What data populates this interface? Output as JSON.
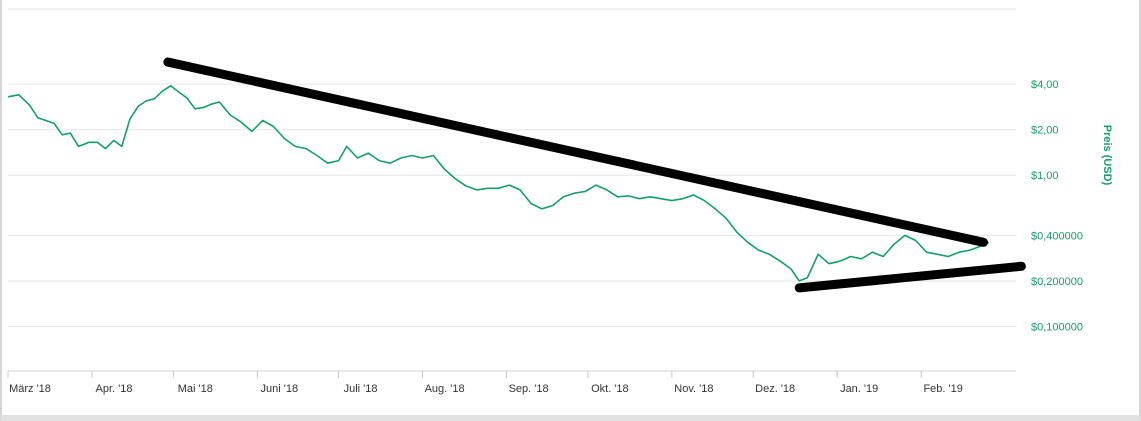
{
  "chart_data": {
    "type": "line",
    "title": "",
    "xlabel": "",
    "ylabel": "Preis (USD)",
    "y_scale": "log",
    "ylim": [
      0.05,
      12
    ],
    "grid": true,
    "legend": "none",
    "colors": {
      "line": "#13a06a",
      "trendline": "#000000",
      "grid": "#e6e6e6",
      "ytick": "#13a06a"
    },
    "x_ticks": [
      "März '18",
      "Apr. '18",
      "Mai '18",
      "Juni '18",
      "Juli '18",
      "Aug. '18",
      "Sep. '18",
      "Okt. '18",
      "Nov. '18",
      "Dez. '18",
      "Jan. '19",
      "Feb. '19"
    ],
    "y_ticks": [
      {
        "value": 4.0,
        "label": "$4,00"
      },
      {
        "value": 2.0,
        "label": "$2,00"
      },
      {
        "value": 1.0,
        "label": "$1,00"
      },
      {
        "value": 0.4,
        "label": "$0,400000"
      },
      {
        "value": 0.2,
        "label": "$0,200000"
      },
      {
        "value": 0.1,
        "label": "$0,100000"
      }
    ],
    "series": [
      {
        "x": [
          "2018-03-01",
          "2018-03-05",
          "2018-03-09",
          "2018-03-12",
          "2018-03-15",
          "2018-03-18",
          "2018-03-21",
          "2018-03-24",
          "2018-03-27",
          "2018-03-31",
          "2018-04-03",
          "2018-04-06",
          "2018-04-09",
          "2018-04-12",
          "2018-04-15",
          "2018-04-18",
          "2018-04-21",
          "2018-04-24",
          "2018-04-27",
          "2018-04-30",
          "2018-05-03",
          "2018-05-06",
          "2018-05-09",
          "2018-05-12",
          "2018-05-15",
          "2018-05-18",
          "2018-05-22",
          "2018-05-26",
          "2018-05-30",
          "2018-06-03",
          "2018-06-07",
          "2018-06-11",
          "2018-06-15",
          "2018-06-19",
          "2018-06-23",
          "2018-06-27",
          "2018-07-01",
          "2018-07-04",
          "2018-07-08",
          "2018-07-12",
          "2018-07-16",
          "2018-07-20",
          "2018-07-24",
          "2018-07-28",
          "2018-08-01",
          "2018-08-05",
          "2018-08-09",
          "2018-08-13",
          "2018-08-17",
          "2018-08-21",
          "2018-08-25",
          "2018-08-29",
          "2018-09-02",
          "2018-09-06",
          "2018-09-10",
          "2018-09-14",
          "2018-09-18",
          "2018-09-22",
          "2018-09-26",
          "2018-09-30",
          "2018-10-04",
          "2018-10-08",
          "2018-10-12",
          "2018-10-16",
          "2018-10-20",
          "2018-10-24",
          "2018-10-28",
          "2018-11-01",
          "2018-11-05",
          "2018-11-09",
          "2018-11-13",
          "2018-11-17",
          "2018-11-21",
          "2018-11-25",
          "2018-11-29",
          "2018-12-03",
          "2018-12-07",
          "2018-12-11",
          "2018-12-15",
          "2018-12-18",
          "2018-12-21",
          "2018-12-25",
          "2018-12-29",
          "2019-01-02",
          "2019-01-06",
          "2019-01-10",
          "2019-01-14",
          "2019-01-18",
          "2019-01-22",
          "2019-01-26",
          "2019-01-30",
          "2019-02-03",
          "2019-02-07",
          "2019-02-11",
          "2019-02-15",
          "2019-02-19",
          "2019-02-23",
          "2019-02-26"
        ],
        "values": [
          3.3,
          3.4,
          2.9,
          2.4,
          2.3,
          2.2,
          1.85,
          1.9,
          1.55,
          1.65,
          1.65,
          1.5,
          1.7,
          1.55,
          2.35,
          2.85,
          3.1,
          3.2,
          3.6,
          3.9,
          3.55,
          3.25,
          2.75,
          2.8,
          2.95,
          3.05,
          2.5,
          2.25,
          1.95,
          2.3,
          2.1,
          1.75,
          1.55,
          1.5,
          1.35,
          1.2,
          1.25,
          1.55,
          1.3,
          1.4,
          1.25,
          1.2,
          1.3,
          1.35,
          1.3,
          1.35,
          1.1,
          0.95,
          0.85,
          0.8,
          0.82,
          0.82,
          0.86,
          0.8,
          0.65,
          0.6,
          0.63,
          0.72,
          0.76,
          0.78,
          0.86,
          0.8,
          0.72,
          0.73,
          0.7,
          0.72,
          0.7,
          0.68,
          0.7,
          0.74,
          0.68,
          0.6,
          0.52,
          0.42,
          0.36,
          0.32,
          0.3,
          0.27,
          0.24,
          0.2,
          0.21,
          0.3,
          0.26,
          0.27,
          0.29,
          0.28,
          0.31,
          0.29,
          0.35,
          0.4,
          0.37,
          0.31,
          0.3,
          0.29,
          0.31,
          0.32,
          0.34,
          0.36
        ]
      }
    ],
    "trendlines": [
      {
        "from": {
          "x": "2018-04-29",
          "y": 5.6
        },
        "to": {
          "x": "2019-02-24",
          "y": 0.36
        }
      },
      {
        "from": {
          "x": "2018-12-18",
          "y": 0.18
        },
        "to": {
          "x": "2019-03-10",
          "y": 0.25
        }
      }
    ]
  }
}
